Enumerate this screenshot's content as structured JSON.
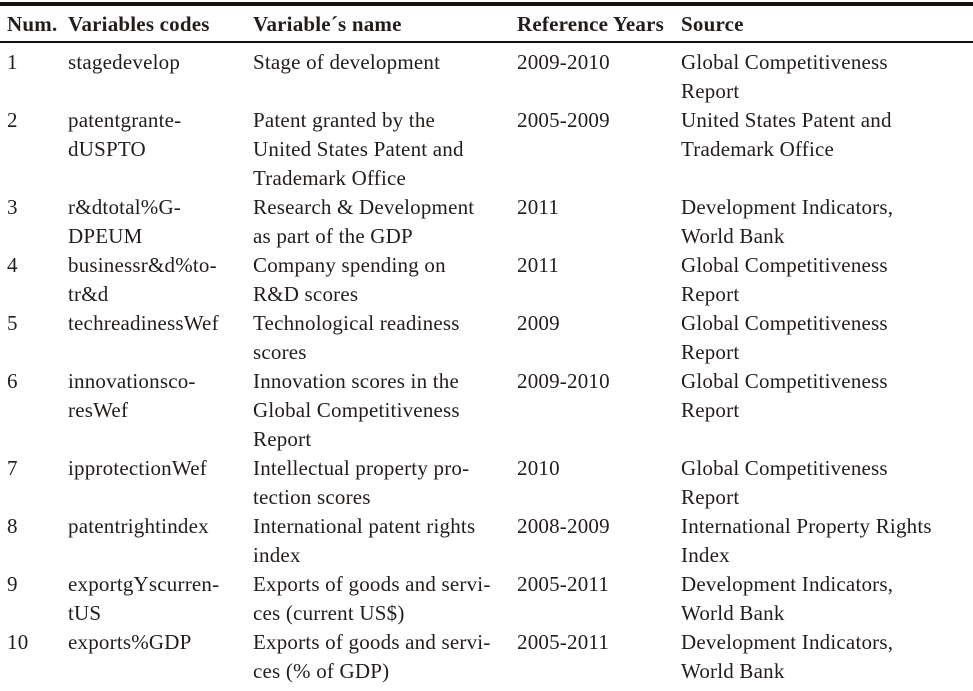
{
  "table": {
    "columns": [
      {
        "key": "num",
        "label": "Num."
      },
      {
        "key": "code",
        "label": "Variables codes"
      },
      {
        "key": "name",
        "label": "Variable´s name"
      },
      {
        "key": "years",
        "label": "Reference Years"
      },
      {
        "key": "source",
        "label": "Source"
      }
    ],
    "rows": [
      {
        "num": "1",
        "code": "stagedevelop",
        "name": "Stage of development",
        "years": "2009-2010",
        "source": "Global Competitiveness\nReport"
      },
      {
        "num": "2",
        "code": "patentgrante-\ndUSPTO",
        "name": "Patent granted by the\nUnited States Patent and\nTrademark Office",
        "years": "2005-2009",
        "source": "United States Patent and\nTrademark Office"
      },
      {
        "num": "3",
        "code": "r&dtotal%G-\nDPEUM",
        "name": "Research & Development\nas part of the GDP",
        "years": "2011",
        "source": "Development Indicators,\nWorld Bank"
      },
      {
        "num": "4",
        "code": "businessr&d%to-\ntr&d",
        "name": "Company spending on\nR&D scores",
        "years": "2011",
        "source": "Global Competitiveness\nReport"
      },
      {
        "num": "5",
        "code": "techreadinessWef",
        "name": "Technological readiness\nscores",
        "years": "2009",
        "source": "Global Competitiveness\nReport"
      },
      {
        "num": "6",
        "code": "innovationsco-\nresWef",
        "name": "Innovation scores in the\nGlobal Competitiveness\nReport",
        "years": "2009-2010",
        "source": "Global Competitiveness\nReport"
      },
      {
        "num": "7",
        "code": "ipprotectionWef",
        "name": "Intellectual property pro-\ntection scores",
        "years": "2010",
        "source": "Global Competitiveness\nReport"
      },
      {
        "num": "8",
        "code": "patentrightindex",
        "name": "International patent rights\nindex",
        "years": "2008-2009",
        "source": "International Property Rights\nIndex"
      },
      {
        "num": "9",
        "code": "exportgYscurren-\ntUS",
        "name": "Exports of goods and servi-\nces (current US$)",
        "years": "2005-2011",
        "source": "Development Indicators,\nWorld Bank"
      },
      {
        "num": "10",
        "code": "exports%GDP",
        "name": "Exports of goods and servi-\nces (% of GDP)",
        "years": "2005-2011",
        "source": "Development Indicators,\nWorld Bank"
      }
    ]
  },
  "colors": {
    "text": "#221d1a",
    "rule": "#16110e",
    "background": "#ffffff"
  }
}
